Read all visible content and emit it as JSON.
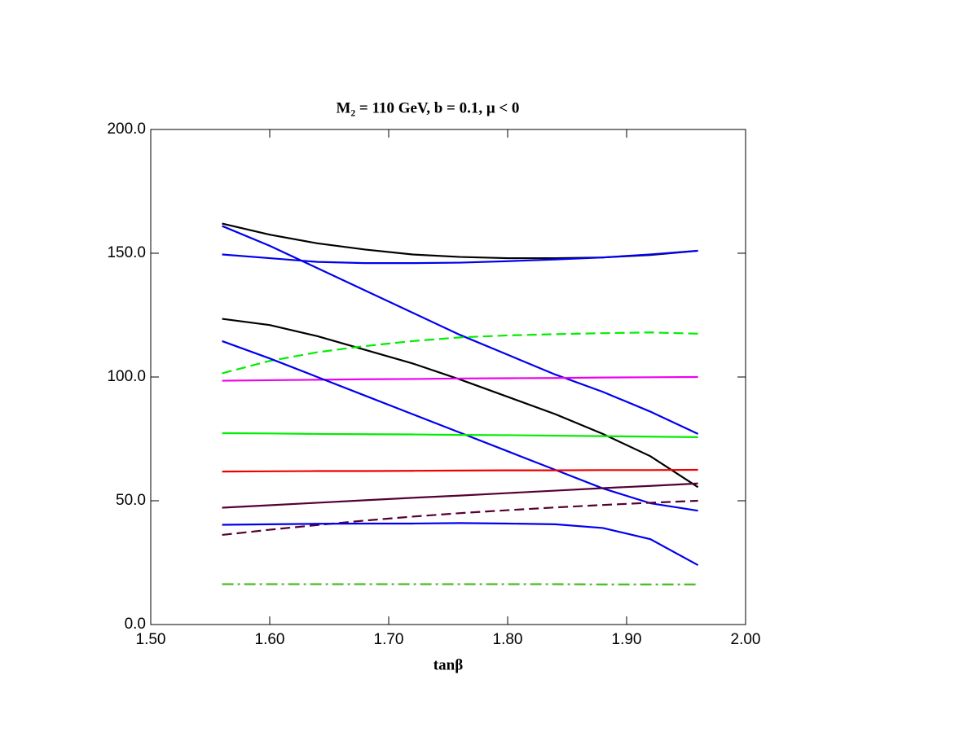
{
  "chart_data": {
    "type": "line",
    "title": "M₂ = 110 GeV, b = 0.1, μ < 0",
    "x_label": "tanβ",
    "x": [
      1.56,
      1.6,
      1.64,
      1.68,
      1.72,
      1.76,
      1.8,
      1.84,
      1.88,
      1.92,
      1.96
    ],
    "xlim": [
      1.5,
      2.0
    ],
    "xticks": [
      {
        "value": 1.5,
        "label": "1.50"
      },
      {
        "value": 1.6,
        "label": "1.60"
      },
      {
        "value": 1.7,
        "label": "1.70"
      },
      {
        "value": 1.8,
        "label": "1.80"
      },
      {
        "value": 1.9,
        "label": "1.90"
      },
      {
        "value": 2.0,
        "label": "2.00"
      }
    ],
    "ylim": [
      0,
      200
    ],
    "yticks": [
      {
        "value": 0,
        "label": "0.0"
      },
      {
        "value": 50,
        "label": "50.0"
      },
      {
        "value": 100,
        "label": "100.0"
      },
      {
        "value": 150,
        "label": "150.0"
      },
      {
        "value": 200,
        "label": "200.0"
      }
    ],
    "series": [
      {
        "color": "#000000",
        "dash": "solid",
        "values": [
          162,
          157.5,
          154,
          151.5,
          149.5,
          148.5,
          148,
          148,
          148.3,
          149.3,
          151
        ]
      },
      {
        "color": "#0000ee",
        "dash": "solid",
        "values": [
          149.5,
          148,
          146.5,
          146,
          146,
          146.2,
          146.8,
          147.5,
          148.3,
          149.5,
          151
        ]
      },
      {
        "color": "#0000ee",
        "dash": "solid",
        "values": [
          161,
          153,
          144,
          135,
          126,
          117,
          109,
          101,
          94,
          86,
          77
        ]
      },
      {
        "color": "#000000",
        "dash": "solid",
        "values": [
          123.5,
          121,
          116.5,
          111,
          105.5,
          99,
          92,
          85,
          77,
          68,
          55.5
        ]
      },
      {
        "color": "#00ee00",
        "dash": "dashed",
        "values": [
          101.5,
          106.5,
          110,
          112.5,
          114.5,
          116,
          116.8,
          117.3,
          117.7,
          118,
          117.5
        ]
      },
      {
        "color": "#ee00ee",
        "dash": "solid",
        "values": [
          98.5,
          98.7,
          98.9,
          99.1,
          99.2,
          99.4,
          99.5,
          99.6,
          99.8,
          99.9,
          100
        ]
      },
      {
        "color": "#0000ee",
        "dash": "solid",
        "values": [
          114.5,
          107.5,
          100,
          92.5,
          85,
          77.5,
          70,
          62.5,
          55,
          49,
          46
        ]
      },
      {
        "color": "#00ee00",
        "dash": "solid",
        "values": [
          77.3,
          77.2,
          77,
          76.9,
          76.8,
          76.6,
          76.5,
          76.3,
          76.1,
          75.9,
          75.7
        ]
      },
      {
        "color": "#ee0000",
        "dash": "solid",
        "values": [
          61.8,
          61.9,
          62,
          62,
          62.1,
          62.2,
          62.3,
          62.3,
          62.4,
          62.4,
          62.5
        ]
      },
      {
        "color": "#550033",
        "dash": "solid",
        "values": [
          47.2,
          48.2,
          49.2,
          50.2,
          51.2,
          52.1,
          53.1,
          54.1,
          55.1,
          56,
          57
        ]
      },
      {
        "color": "#550033",
        "dash": "dashed",
        "values": [
          36.2,
          38.3,
          40.2,
          42,
          43.6,
          45,
          46.2,
          47.3,
          48.3,
          49.2,
          50
        ]
      },
      {
        "color": "#0000ee",
        "dash": "solid",
        "values": [
          40.3,
          40.5,
          40.7,
          40.8,
          40.8,
          41,
          40.8,
          40.5,
          39,
          34.5,
          24
        ]
      },
      {
        "color": "#44bb22",
        "dash": "dashdot",
        "values": [
          16.3,
          16.3,
          16.3,
          16.3,
          16.3,
          16.3,
          16.3,
          16.3,
          16.2,
          16.2,
          16.2
        ]
      }
    ]
  }
}
